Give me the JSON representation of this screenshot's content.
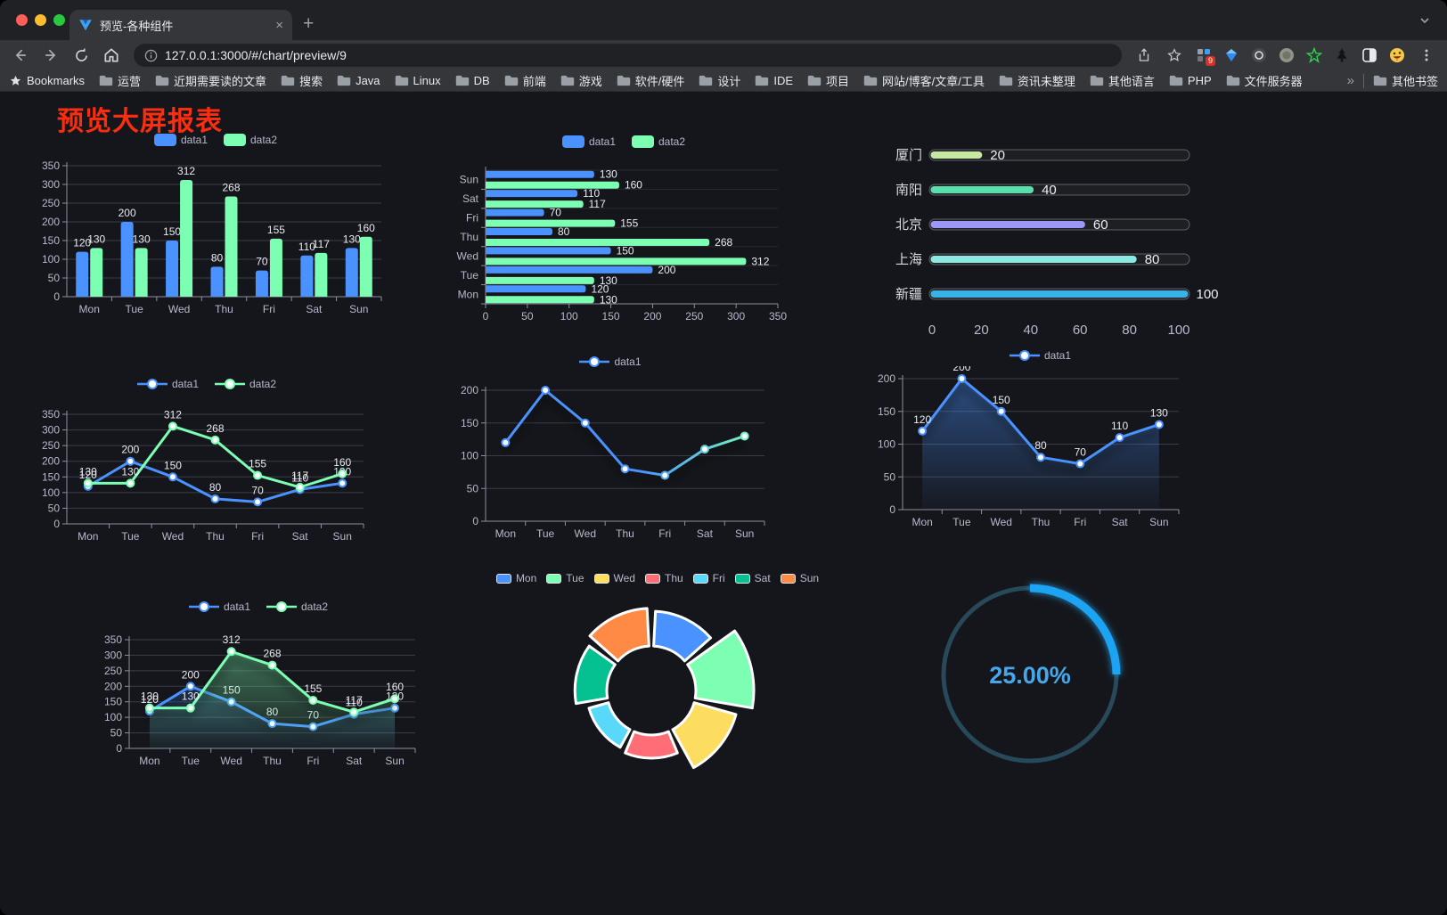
{
  "browser": {
    "tab": {
      "title": "预览-各种组件",
      "close": "×",
      "new_tab": "+"
    },
    "url": "127.0.0.1:3000/#/chart/preview/9",
    "bookmarks_label": "Bookmarks",
    "bookmarks": [
      "运营",
      "近期需要读的文章",
      "搜索",
      "Java",
      "Linux",
      "DB",
      "前端",
      "游戏",
      "软件/硬件",
      "设计",
      "IDE",
      "项目",
      "网站/博客/文章/工具",
      "资讯未整理",
      "其他语言",
      "PHP",
      "文件服务器"
    ],
    "bookmarks_overflow": "»",
    "other_bookmarks": "其他书签",
    "extension_badge": "9"
  },
  "page": {
    "title": "预览大屏报表",
    "title_color": "#f92d10",
    "background": "#15161b"
  },
  "colors": {
    "data1_blue": "#4992ff",
    "data2_green": "#7cffb2",
    "axis_line": "#8f8fa3",
    "axis_label": "#b9b8ce",
    "grid_line": "#3c3c48",
    "value_label": "#eaeaf2"
  },
  "chart_data": [
    {
      "id": "bar-grouped",
      "type": "bar",
      "categories": [
        "Mon",
        "Tue",
        "Wed",
        "Thu",
        "Fri",
        "Sat",
        "Sun"
      ],
      "series": [
        {
          "name": "data1",
          "color": "#4992ff",
          "values": [
            120,
            200,
            150,
            80,
            70,
            110,
            130
          ]
        },
        {
          "name": "data2",
          "color": "#7cffb2",
          "values": [
            130,
            130,
            312,
            268,
            155,
            117,
            160
          ]
        }
      ],
      "ylim": [
        0,
        350
      ],
      "ystep": 50,
      "labels": true,
      "legend": true
    },
    {
      "id": "bar-horizontal",
      "type": "hbar",
      "categories": [
        "Mon",
        "Tue",
        "Wed",
        "Thu",
        "Fri",
        "Sat",
        "Sun"
      ],
      "series": [
        {
          "name": "data1",
          "color": "#4992ff",
          "values": [
            120,
            200,
            150,
            80,
            70,
            110,
            130
          ]
        },
        {
          "name": "data2",
          "color": "#7cffb2",
          "values": [
            130,
            130,
            312,
            268,
            155,
            117,
            160
          ]
        }
      ],
      "xlim": [
        0,
        350
      ],
      "xstep": 50,
      "labels": true,
      "legend": true
    },
    {
      "id": "progress-bars",
      "type": "progress",
      "rows": [
        {
          "label": "厦门",
          "value": 20,
          "color": "#c5e8a2"
        },
        {
          "label": "南阳",
          "value": 40,
          "color": "#57dfae"
        },
        {
          "label": "北京",
          "value": 60,
          "color": "#9b97f7"
        },
        {
          "label": "上海",
          "value": 80,
          "color": "#8ce8e2"
        },
        {
          "label": "新疆",
          "value": 100,
          "color": "#39b2e6"
        }
      ],
      "xlim": [
        0,
        100
      ],
      "xstep": 20
    },
    {
      "id": "line-dual",
      "type": "line",
      "categories": [
        "Mon",
        "Tue",
        "Wed",
        "Thu",
        "Fri",
        "Sat",
        "Sun"
      ],
      "series": [
        {
          "name": "data1",
          "color": "#4992ff",
          "values": [
            120,
            200,
            150,
            80,
            70,
            110,
            130
          ]
        },
        {
          "name": "data2",
          "color": "#7cffb2",
          "values": [
            130,
            130,
            312,
            268,
            155,
            117,
            160
          ]
        }
      ],
      "ylim": [
        0,
        350
      ],
      "ystep": 50,
      "labels": true,
      "legend": true
    },
    {
      "id": "line-gradient",
      "type": "line",
      "categories": [
        "Mon",
        "Tue",
        "Wed",
        "Thu",
        "Fri",
        "Sat",
        "Sun"
      ],
      "series": [
        {
          "name": "data1",
          "color": "#4992ff",
          "gradient": [
            "#4992ff",
            "#4992ff",
            "#7cffb2"
          ],
          "shadow": true,
          "values": [
            120,
            200,
            150,
            80,
            70,
            110,
            130
          ]
        }
      ],
      "ylim": [
        0,
        200
      ],
      "ystep": 50,
      "labels": false,
      "legend": true
    },
    {
      "id": "line-area",
      "type": "line",
      "categories": [
        "Mon",
        "Tue",
        "Wed",
        "Thu",
        "Fri",
        "Sat",
        "Sun"
      ],
      "series": [
        {
          "name": "data1",
          "color": "#4992ff",
          "area": true,
          "shadow": true,
          "values": [
            120,
            200,
            150,
            80,
            70,
            110,
            130
          ]
        }
      ],
      "ylim": [
        0,
        200
      ],
      "ystep": 50,
      "labels": true,
      "legend": true
    },
    {
      "id": "line-area-dual",
      "type": "line",
      "categories": [
        "Mon",
        "Tue",
        "Wed",
        "Thu",
        "Fri",
        "Sat",
        "Sun"
      ],
      "series": [
        {
          "name": "data1",
          "color": "#4992ff",
          "area": true,
          "shadow": true,
          "values": [
            120,
            200,
            150,
            80,
            70,
            110,
            130
          ]
        },
        {
          "name": "data2",
          "color": "#7cffb2",
          "area": true,
          "shadow": true,
          "values": [
            130,
            130,
            312,
            268,
            155,
            117,
            160
          ]
        }
      ],
      "ylim": [
        0,
        350
      ],
      "ystep": 50,
      "labels": true,
      "legend": true
    },
    {
      "id": "rose-donut",
      "type": "rose",
      "categories": [
        "Mon",
        "Tue",
        "Wed",
        "Thu",
        "Fri",
        "Sat",
        "Sun"
      ],
      "values": [
        120,
        200,
        150,
        80,
        70,
        110,
        130
      ],
      "colors": [
        "#4992ff",
        "#7cffb2",
        "#fddd60",
        "#ff6e76",
        "#58d9f9",
        "#05c091",
        "#ff8a45"
      ],
      "legend": true
    },
    {
      "id": "ring-gauge",
      "type": "gauge",
      "percent": 25,
      "label": "25.00%",
      "color": "#1aa3f2",
      "track": "#27495a",
      "text_color": "#47a7eb"
    }
  ]
}
